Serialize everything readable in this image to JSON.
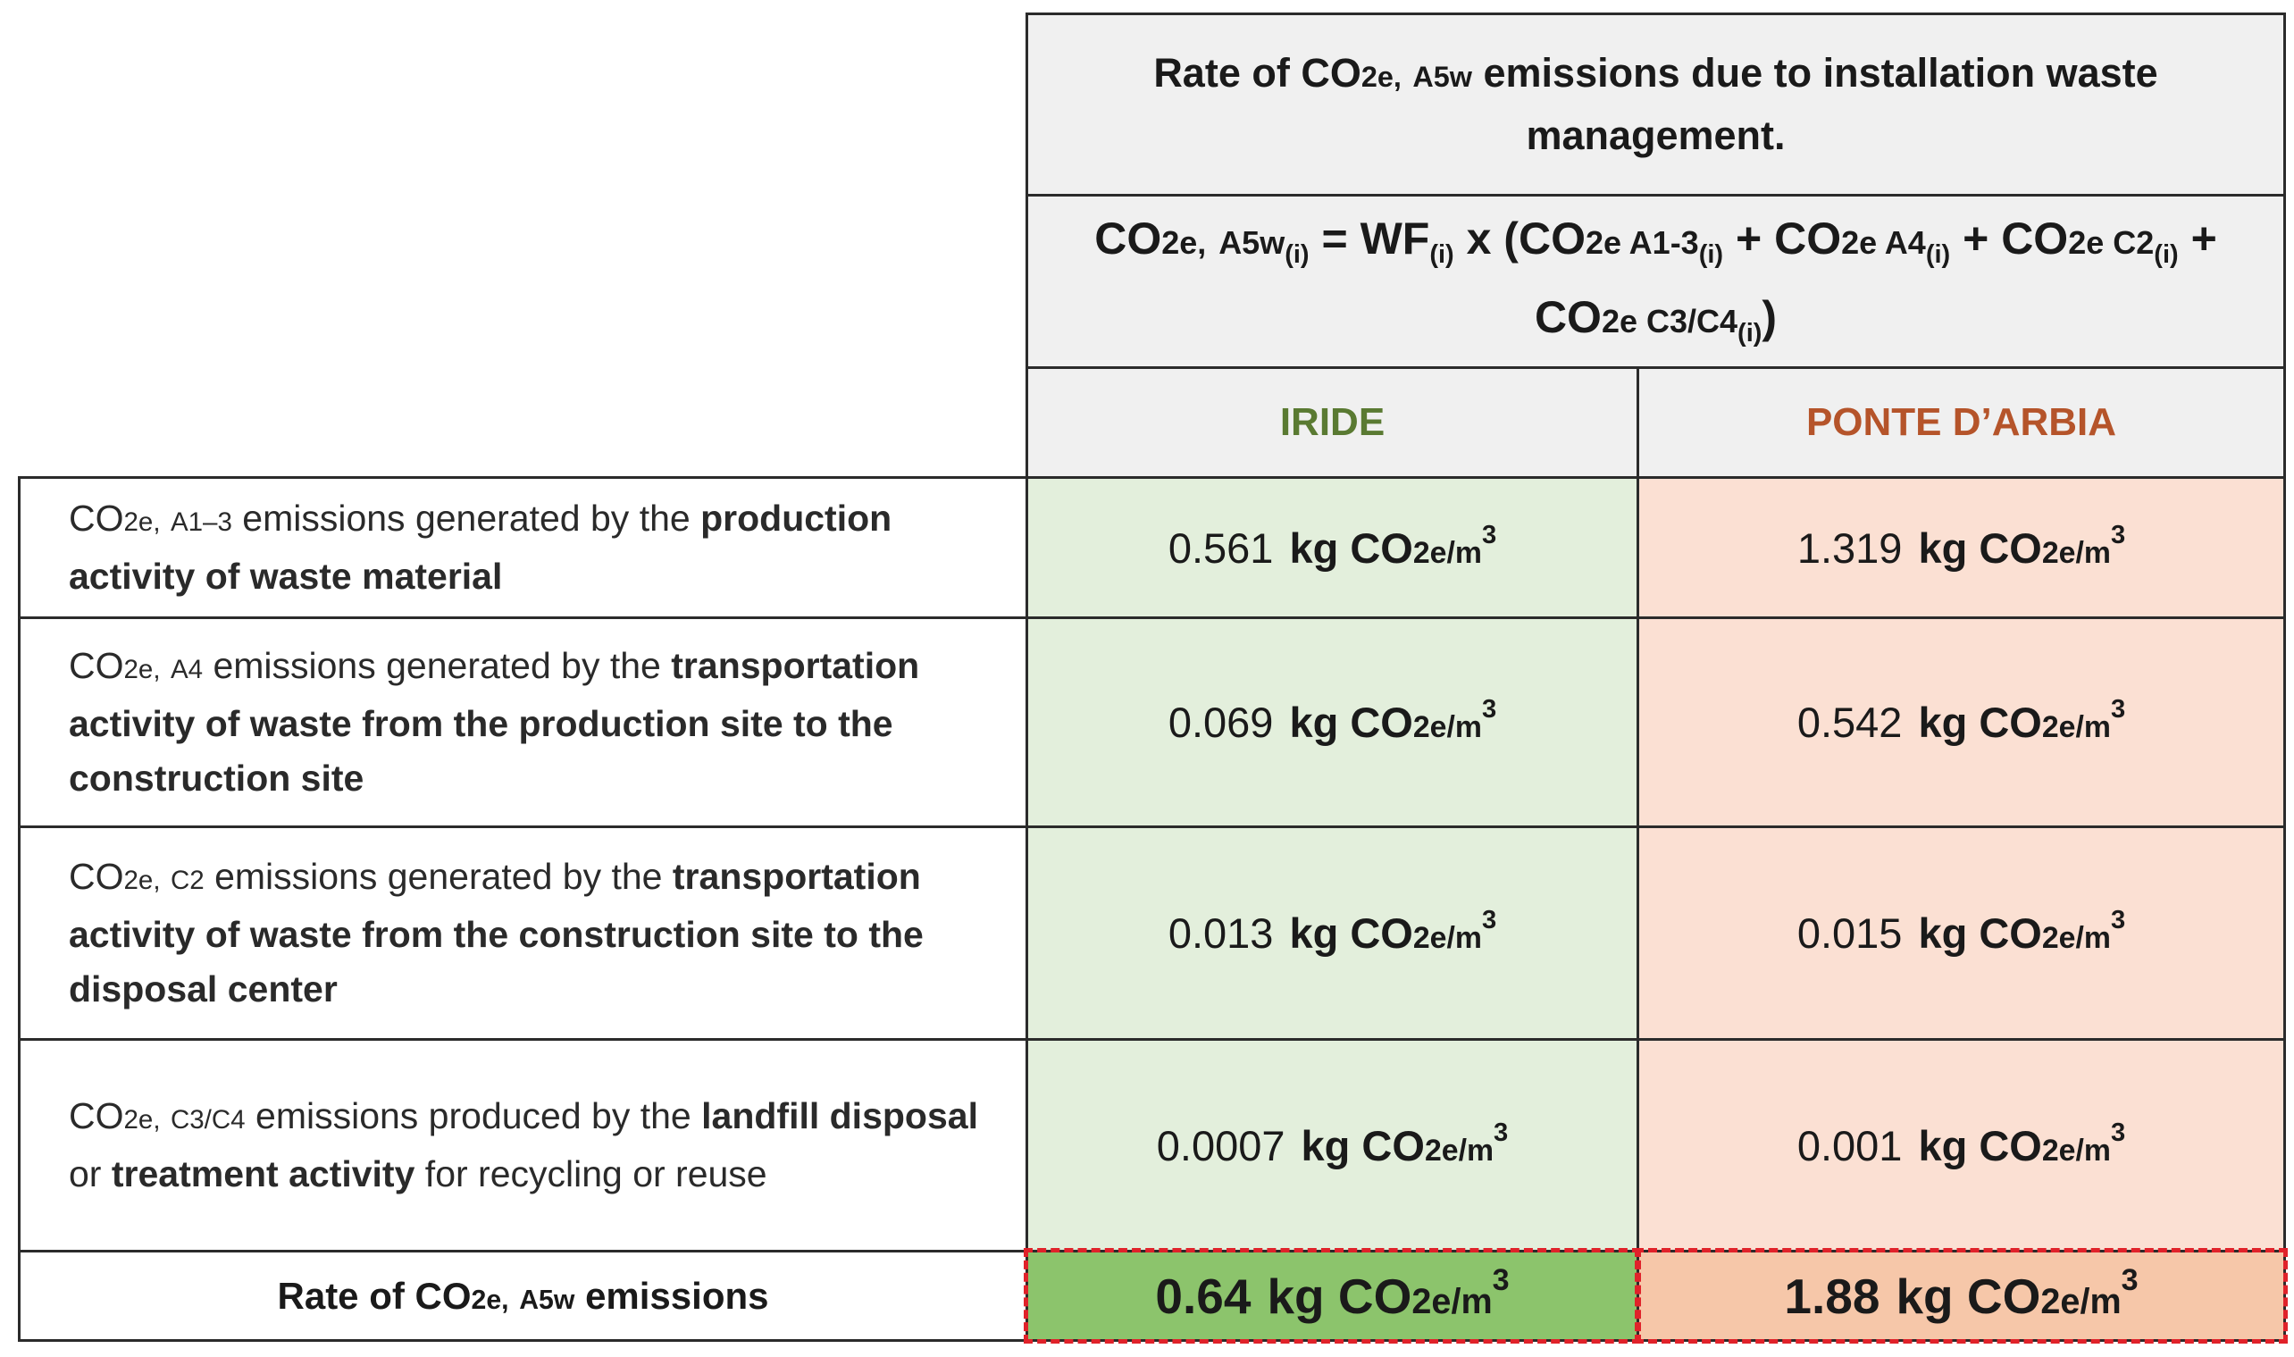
{
  "header": {
    "title_prefix": "Rate of CO",
    "title_co2e_suffix": "2e,",
    "title_a5w": "A5w",
    "title_suffix": "emissions due to installation waste management.",
    "formula": {
      "co2": "CO",
      "co2e_suffix": "2e,",
      "a5w": "A5w",
      "i": "(i)",
      "eq_wf": "= WF",
      "x_open": "x (CO",
      "a13": "2e A1-3",
      "plus1": "+ CO",
      "a4": "2e A4",
      "plus2": "+ CO",
      "c2": "2e C2",
      "plus3": "+",
      "line2_co": "CO",
      "c3c4": "2e C3/C4",
      "close": ")"
    }
  },
  "columns": [
    {
      "name": "IRIDE",
      "color": "#5a7a32"
    },
    {
      "name": "PONTE D’ARBIA",
      "color": "#b5542a"
    }
  ],
  "rows": [
    {
      "label": {
        "co": "CO",
        "co2e": "2e,",
        "stage": "A1–3",
        "pre": "emissions generated by the",
        "bold1": "production activity of waste material"
      },
      "iride": "0.561",
      "ponte": "1.319"
    },
    {
      "label": {
        "co": "CO",
        "co2e": "2e,",
        "stage": "A4",
        "pre": "emissions generated by the",
        "bold1": "transportation activity of waste from the production site to the construction site"
      },
      "iride": "0.069",
      "ponte": "0.542"
    },
    {
      "label": {
        "co": "CO",
        "co2e": "2e,",
        "stage": "C2",
        "pre": "emissions generated by the",
        "bold1": "transportation activity of waste from the construction site to the disposal center"
      },
      "iride": "0.013",
      "ponte": "0.015"
    },
    {
      "label": {
        "co": "CO",
        "co2e": "2e,",
        "stage": "C3/C4",
        "pre": "emissions produced by the",
        "bold1": "landfill disposal",
        "mid": "or",
        "bold2": "treatment activity",
        "post": "for recycling or reuse"
      },
      "iride": "0.0007",
      "ponte": "0.001"
    }
  ],
  "unit": {
    "kg": "kg CO",
    "co2e": "2e/m",
    "exp": "3"
  },
  "total": {
    "label_prefix": "Rate of CO",
    "label_co2e": "2e,",
    "label_a5w": "A5w",
    "label_suffix": "emissions",
    "iride": "0.64",
    "ponte": "1.88"
  },
  "colors": {
    "green_fill": "#e3efdc",
    "peach_fill": "#fbe0d3",
    "green_total": "#8cc46c",
    "peach_total": "#f6c7a9",
    "dashed": "#e0222a"
  }
}
